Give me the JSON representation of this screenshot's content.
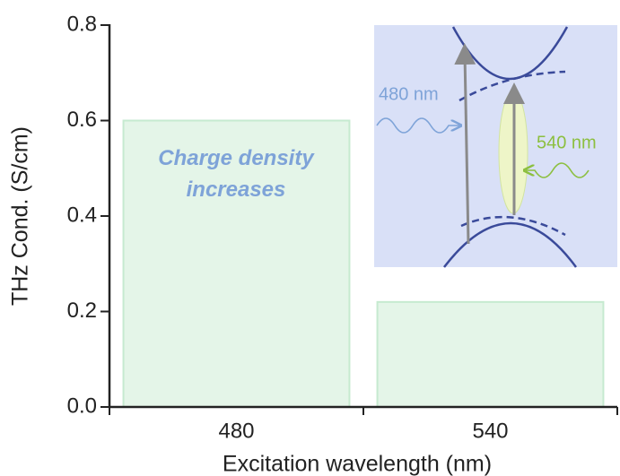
{
  "chart_data": {
    "type": "bar",
    "xlabel": "Excitation wavelength (nm)",
    "ylabel": "THz Cond. (S/cm)",
    "categories": [
      "480",
      "540"
    ],
    "values": [
      0.6,
      0.22
    ],
    "color": "#e4f5e8",
    "ylim": [
      0,
      0.8
    ],
    "yticks": [
      {
        "value": 0,
        "label": "0.0"
      },
      0.2,
      0.4,
      0.6,
      0.8
    ],
    "annotation": "Charge density increases",
    "inset_labels": [
      "480 nm",
      "540 nm"
    ]
  }
}
